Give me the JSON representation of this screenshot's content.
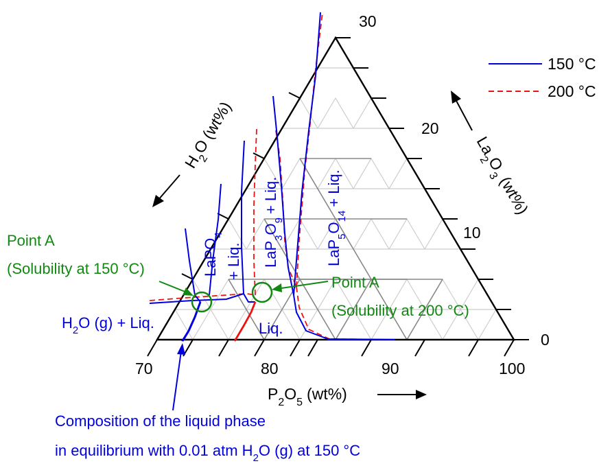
{
  "chart_data": {
    "type": "ternary-phase-diagram",
    "axes": {
      "p2o5": {
        "label_main": "P",
        "label_sub": "2",
        "label_o": "O",
        "label_osub": "5",
        "label_unit": "(wt%)",
        "range": [
          70,
          100
        ],
        "ticks": [
          "70",
          "80",
          "90",
          "100"
        ]
      },
      "h2o": {
        "label_main": "H",
        "label_sub": "2",
        "label_o": "O",
        "label_unit": "(wt%)"
      },
      "la2o3": {
        "label_main": "La",
        "label_sub": "2",
        "label_o": "O",
        "label_osub": "3",
        "label_unit": "(wt%)",
        "range": [
          0,
          30
        ],
        "ticks": [
          "0",
          "10",
          "20",
          "30"
        ]
      }
    },
    "legend": [
      {
        "name": "150 °C",
        "color": "#0000dd",
        "style": "solid"
      },
      {
        "name": "200 °C",
        "color": "#ee1111",
        "style": "dashed"
      }
    ],
    "regions": {
      "lapo4": {
        "t1": "LaPO",
        "t1sub": "4",
        "t2": "+ Liq."
      },
      "lap3o9": {
        "t1": "LaP",
        "t1sub": "3",
        "t2": "O",
        "t2sub": "9",
        "t3": "+ Liq."
      },
      "lap5o14": {
        "t1": "LaP",
        "t1sub": "5",
        "t2": "O",
        "t2sub": "14",
        "t3": "+ Liq."
      },
      "liq": "Liq.",
      "h2o_liq": {
        "t1": "H",
        "t1sub": "2",
        "t2": "O (g) + Liq."
      }
    },
    "point_a_150": {
      "title": "Point A",
      "subtitle": "(Solubility at 150 °C)"
    },
    "point_a_200": {
      "title": "Point A",
      "subtitle": "(Solubility at 200 °C)"
    },
    "annotation": {
      "line1": "Composition of the liquid phase",
      "line2_a": "in equilibrium with 0.01 atm H",
      "line2_sub": "2",
      "line2_b": "O (g) at 150 °C"
    }
  }
}
